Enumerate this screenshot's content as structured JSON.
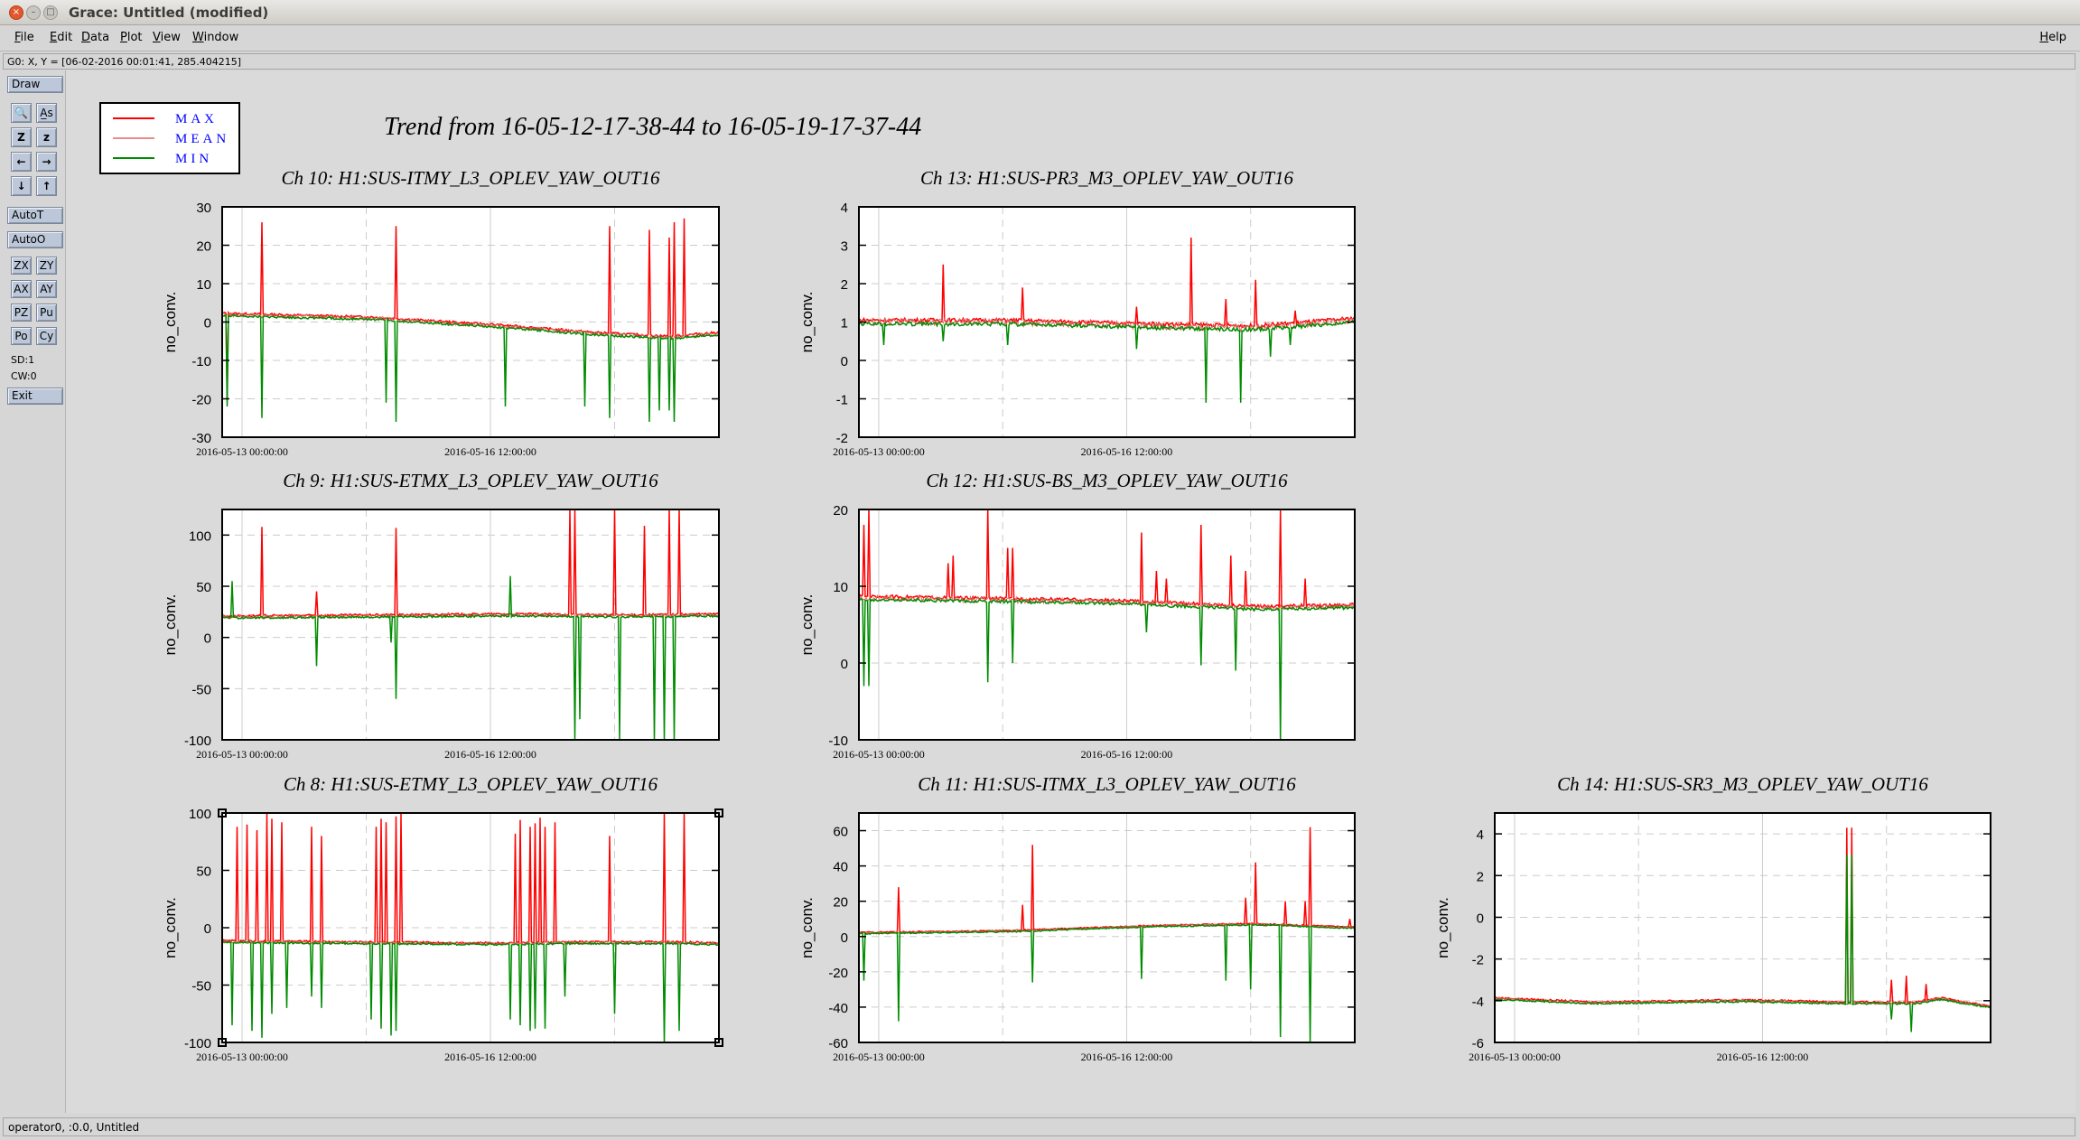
{
  "window": {
    "title": "Grace: Untitled (modified)",
    "close_glyph": "×",
    "min_glyph": "–",
    "max_glyph": "□"
  },
  "menu": {
    "items": [
      "File",
      "Edit",
      "Data",
      "Plot",
      "View",
      "Window"
    ],
    "help": "Help"
  },
  "locator": "G0: X, Y = [06-02-2016 00:01:41, 285.404215]",
  "toolbar": {
    "draw": "Draw",
    "zoom_glyphs": [
      "🔍",
      "A̲s"
    ],
    "z_glyphs": [
      "Z",
      "z"
    ],
    "arrow_glyphs": [
      "←",
      "→",
      "↓",
      "↑"
    ],
    "autot": "AutoT",
    "autoo": "AutoO",
    "pairs": [
      [
        "ZX",
        "ZY"
      ],
      [
        "AX",
        "AY"
      ],
      [
        "PZ",
        "Pu"
      ],
      [
        "Po",
        "Cy"
      ]
    ],
    "sd": "SD:1",
    "cw": "CW:0",
    "exit": "Exit"
  },
  "status": "operator0, :0.0, Untitled",
  "colors": {
    "max": "#ff0000",
    "mean": "#e06666",
    "min": "#008c00",
    "legend_text": "#0000ff"
  },
  "chart_data": {
    "type": "line",
    "title": "Trend from 16-05-12-17-38-44 to 16-05-19-17-37-44",
    "legend": [
      "MAX",
      "MEAN",
      "MIN"
    ],
    "x_tick_labels": [
      "2016-05-13 00:00:00",
      "2016-05-16 12:00:00"
    ],
    "ylabel": "no_conv.",
    "panels": [
      {
        "title": "Ch 10: H1:SUS-ITMY_L3_OPLEV_YAW_OUT16",
        "ylim": [
          -30,
          30
        ],
        "yticks": [
          -30,
          -20,
          -10,
          0,
          10,
          20,
          30
        ],
        "mean_path": [
          [
            0,
            2
          ],
          [
            0.3,
            1
          ],
          [
            0.55,
            -1
          ],
          [
            0.75,
            -3
          ],
          [
            0.9,
            -4
          ],
          [
            1,
            -3
          ]
        ],
        "noise": 0.6,
        "max_spikes": [
          [
            0.01,
            -20
          ],
          [
            0.08,
            26
          ],
          [
            0.35,
            25
          ],
          [
            0.78,
            25
          ],
          [
            0.86,
            24
          ],
          [
            0.9,
            22
          ],
          [
            0.91,
            26
          ],
          [
            0.93,
            27
          ]
        ],
        "min_spikes": [
          [
            0.01,
            -22
          ],
          [
            0.08,
            -25
          ],
          [
            0.33,
            -21
          ],
          [
            0.35,
            -26
          ],
          [
            0.57,
            -22
          ],
          [
            0.73,
            -22
          ],
          [
            0.78,
            -25
          ],
          [
            0.86,
            -26
          ],
          [
            0.88,
            -23
          ],
          [
            0.9,
            -23
          ],
          [
            0.91,
            -26
          ]
        ]
      },
      {
        "title": "Ch 13: H1:SUS-PR3_M3_OPLEV_YAW_OUT16",
        "ylim": [
          -2,
          4
        ],
        "yticks": [
          -2,
          -1,
          0,
          1,
          2,
          3,
          4
        ],
        "mean_path": [
          [
            0,
            1
          ],
          [
            0.3,
            1
          ],
          [
            0.6,
            0.9
          ],
          [
            0.8,
            0.85
          ],
          [
            1,
            1.05
          ]
        ],
        "noise": 0.1,
        "max_spikes": [
          [
            0.17,
            2.5
          ],
          [
            0.33,
            1.9
          ],
          [
            0.56,
            1.4
          ],
          [
            0.67,
            3.2
          ],
          [
            0.74,
            1.6
          ],
          [
            0.8,
            2.1
          ],
          [
            0.88,
            1.3
          ]
        ],
        "min_spikes": [
          [
            0.05,
            0.4
          ],
          [
            0.17,
            0.5
          ],
          [
            0.3,
            0.4
          ],
          [
            0.56,
            0.3
          ],
          [
            0.7,
            -1.1
          ],
          [
            0.77,
            -1.1
          ],
          [
            0.83,
            0.1
          ],
          [
            0.87,
            0.4
          ]
        ]
      },
      {
        "title": "Ch 14: H1:SUS-SR3_M3_OPLEV_YAW_OUT16",
        "ylim": [
          -6,
          5
        ],
        "yticks": [
          -6,
          -4,
          -2,
          0,
          2,
          4
        ],
        "mean_path": [
          [
            0,
            -3.9
          ],
          [
            0.2,
            -4.1
          ],
          [
            0.5,
            -4
          ],
          [
            0.7,
            -4.1
          ],
          [
            0.85,
            -4.1
          ],
          [
            0.9,
            -3.9
          ],
          [
            1,
            -4.3
          ]
        ],
        "noise": 0.08,
        "max_spikes": [
          [
            0.71,
            4.3
          ],
          [
            0.72,
            4.3
          ],
          [
            0.8,
            -3
          ],
          [
            0.83,
            -2.8
          ],
          [
            0.87,
            -3.2
          ]
        ],
        "min_spikes": [
          [
            0.71,
            3
          ],
          [
            0.72,
            3
          ],
          [
            0.8,
            -4.9
          ],
          [
            0.84,
            -5.5
          ]
        ]
      },
      {
        "title": "Ch 9: H1:SUS-ETMX_L3_OPLEV_YAW_OUT16",
        "ylim": [
          -100,
          125
        ],
        "yticks": [
          -100,
          -50,
          0,
          50,
          100
        ],
        "mean_path": [
          [
            0,
            20
          ],
          [
            0.3,
            21
          ],
          [
            0.6,
            22
          ],
          [
            0.8,
            21
          ],
          [
            1,
            22
          ]
        ],
        "noise": 2,
        "max_spikes": [
          [
            0.08,
            108
          ],
          [
            0.19,
            45
          ],
          [
            0.35,
            107
          ],
          [
            0.7,
            125
          ],
          [
            0.71,
            125
          ],
          [
            0.79,
            125
          ],
          [
            0.85,
            109
          ],
          [
            0.9,
            125
          ],
          [
            0.92,
            125
          ]
        ],
        "min_spikes": [
          [
            0.02,
            55
          ],
          [
            0.19,
            -28
          ],
          [
            0.34,
            -5
          ],
          [
            0.35,
            -60
          ],
          [
            0.58,
            60
          ],
          [
            0.71,
            -100
          ],
          [
            0.72,
            -80
          ],
          [
            0.8,
            -100
          ],
          [
            0.87,
            -100
          ],
          [
            0.89,
            -100
          ],
          [
            0.91,
            -100
          ]
        ]
      },
      {
        "title": "Ch 12: H1:SUS-BS_M3_OPLEV_YAW_OUT16",
        "ylim": [
          -10,
          20
        ],
        "yticks": [
          -10,
          0,
          10,
          20
        ],
        "mean_path": [
          [
            0,
            8.5
          ],
          [
            0.2,
            8.3
          ],
          [
            0.5,
            8
          ],
          [
            0.8,
            7.2
          ],
          [
            1,
            7.4
          ]
        ],
        "noise": 0.4,
        "max_spikes": [
          [
            0.01,
            18
          ],
          [
            0.02,
            20
          ],
          [
            0.18,
            13
          ],
          [
            0.19,
            14
          ],
          [
            0.26,
            20
          ],
          [
            0.3,
            15
          ],
          [
            0.31,
            15
          ],
          [
            0.57,
            17
          ],
          [
            0.6,
            12
          ],
          [
            0.62,
            11
          ],
          [
            0.69,
            18
          ],
          [
            0.75,
            14
          ],
          [
            0.78,
            12
          ],
          [
            0.85,
            20
          ],
          [
            0.9,
            11
          ]
        ],
        "min_spikes": [
          [
            0.01,
            -3
          ],
          [
            0.02,
            -3
          ],
          [
            0.26,
            -2.5
          ],
          [
            0.31,
            0
          ],
          [
            0.58,
            4
          ],
          [
            0.69,
            -0.3
          ],
          [
            0.76,
            -1
          ],
          [
            0.85,
            -10
          ]
        ]
      },
      {
        "title": "Ch 8: H1:SUS-ETMY_L3_OPLEV_YAW_OUT16",
        "ylim": [
          -100,
          100
        ],
        "yticks": [
          -100,
          -50,
          0,
          50,
          100
        ],
        "mean_path": [
          [
            0,
            -12
          ],
          [
            0.25,
            -13
          ],
          [
            0.55,
            -14
          ],
          [
            0.72,
            -13
          ],
          [
            0.9,
            -13
          ],
          [
            1,
            -14
          ]
        ],
        "noise": 1.5,
        "max_spikes": [
          [
            0.03,
            88
          ],
          [
            0.05,
            90
          ],
          [
            0.07,
            85
          ],
          [
            0.09,
            100
          ],
          [
            0.1,
            95
          ],
          [
            0.12,
            92
          ],
          [
            0.18,
            88
          ],
          [
            0.2,
            80
          ],
          [
            0.31,
            88
          ],
          [
            0.32,
            95
          ],
          [
            0.33,
            92
          ],
          [
            0.35,
            97
          ],
          [
            0.36,
            100
          ],
          [
            0.59,
            82
          ],
          [
            0.6,
            94
          ],
          [
            0.62,
            88
          ],
          [
            0.63,
            91
          ],
          [
            0.64,
            96
          ],
          [
            0.65,
            88
          ],
          [
            0.67,
            92
          ],
          [
            0.78,
            80
          ],
          [
            0.89,
            100
          ],
          [
            0.93,
            100
          ]
        ],
        "min_spikes": [
          [
            0.02,
            -85
          ],
          [
            0.06,
            -90
          ],
          [
            0.08,
            -96
          ],
          [
            0.1,
            -75
          ],
          [
            0.13,
            -70
          ],
          [
            0.18,
            -60
          ],
          [
            0.2,
            -70
          ],
          [
            0.3,
            -80
          ],
          [
            0.32,
            -88
          ],
          [
            0.34,
            -94
          ],
          [
            0.35,
            -90
          ],
          [
            0.58,
            -80
          ],
          [
            0.6,
            -85
          ],
          [
            0.62,
            -90
          ],
          [
            0.63,
            -88
          ],
          [
            0.65,
            -88
          ],
          [
            0.69,
            -60
          ],
          [
            0.79,
            -75
          ],
          [
            0.89,
            -100
          ],
          [
            0.92,
            -90
          ]
        ]
      },
      {
        "title": "Ch 11: H1:SUS-ITMX_L3_OPLEV_YAW_OUT16",
        "ylim": [
          -60,
          70
        ],
        "yticks": [
          -60,
          -40,
          -20,
          0,
          20,
          40,
          60
        ],
        "mean_path": [
          [
            0,
            2
          ],
          [
            0.3,
            3
          ],
          [
            0.6,
            6
          ],
          [
            0.8,
            7
          ],
          [
            1,
            5
          ]
        ],
        "noise": 0.7,
        "max_spikes": [
          [
            0.08,
            28
          ],
          [
            0.33,
            18
          ],
          [
            0.35,
            52
          ],
          [
            0.78,
            22
          ],
          [
            0.8,
            42
          ],
          [
            0.86,
            20
          ],
          [
            0.9,
            20
          ],
          [
            0.91,
            62
          ],
          [
            0.99,
            10
          ]
        ],
        "min_spikes": [
          [
            0.01,
            -25
          ],
          [
            0.08,
            -48
          ],
          [
            0.35,
            -26
          ],
          [
            0.57,
            -24
          ],
          [
            0.74,
            -25
          ],
          [
            0.79,
            -30
          ],
          [
            0.85,
            -57
          ],
          [
            0.91,
            -60
          ]
        ]
      }
    ]
  }
}
